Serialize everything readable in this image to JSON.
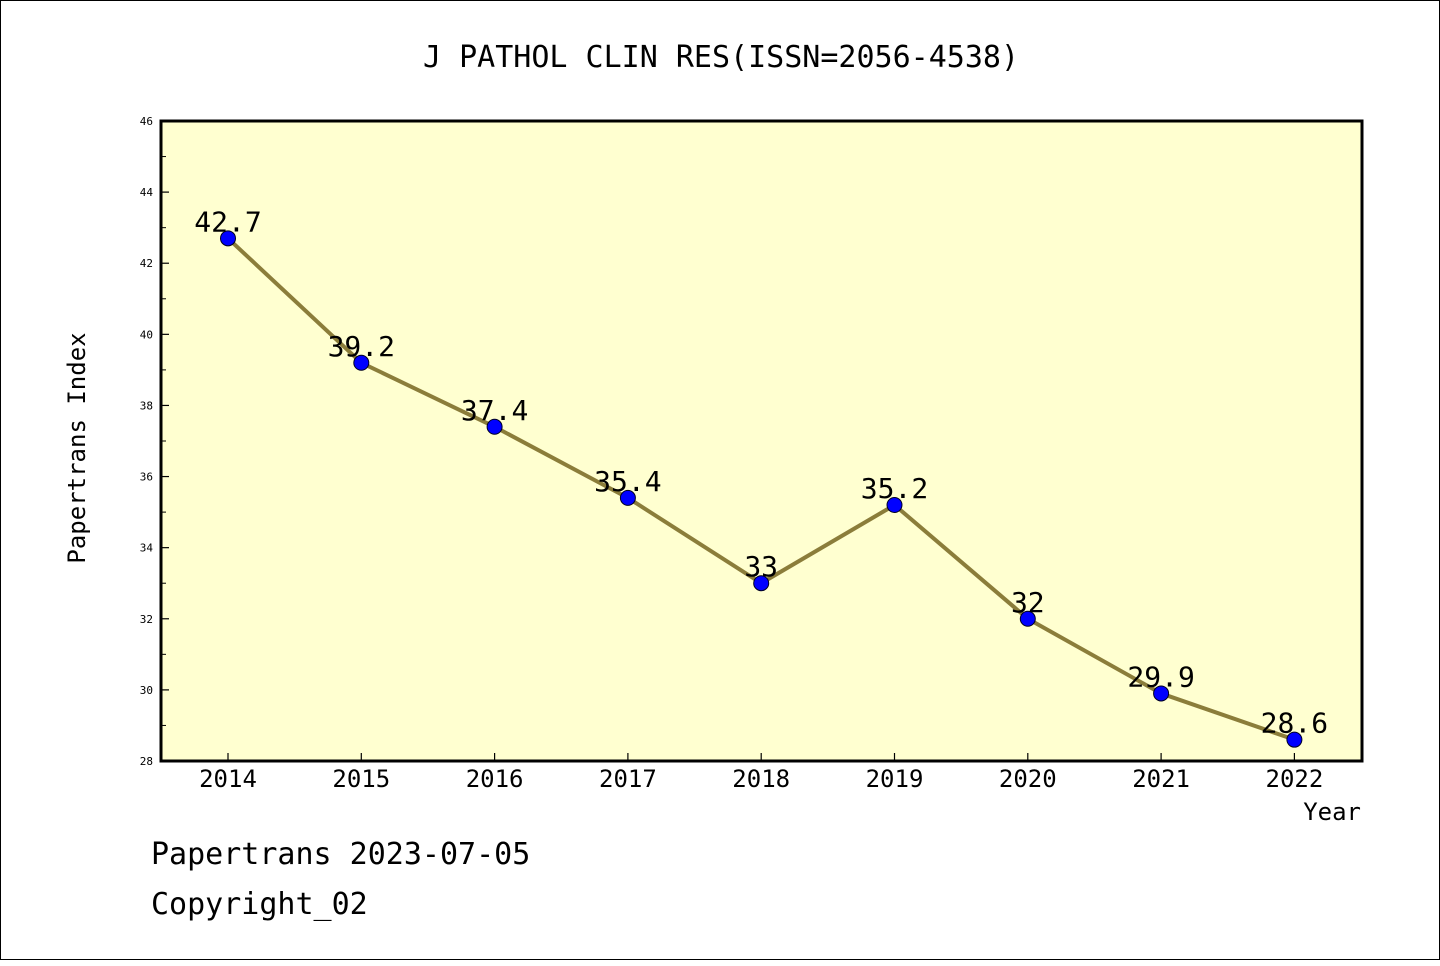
{
  "chart_data": {
    "type": "line",
    "title": "J PATHOL CLIN RES(ISSN=2056-4538)",
    "xlabel": "Year",
    "ylabel": "Papertrans Index",
    "x": [
      "2014",
      "2015",
      "2016",
      "2017",
      "2018",
      "2019",
      "2020",
      "2021",
      "2022"
    ],
    "series": [
      {
        "values": [
          42.7,
          39.2,
          37.4,
          35.4,
          33,
          35.2,
          32,
          29.9,
          28.6
        ],
        "labels": [
          "42.7",
          "39.2",
          "37.4",
          "35.4",
          "33",
          "35.2",
          "32",
          "29.9",
          "28.6"
        ]
      }
    ],
    "ylim": [
      28,
      46
    ],
    "yticks": [
      "28",
      "30",
      "32",
      "34",
      "36",
      "38",
      "40",
      "42",
      "44",
      "46"
    ],
    "grid": false,
    "legend": "none",
    "colors": {
      "plot_background": "#FFFFD0",
      "line": "#8B7D3A",
      "marker": "#0000FF"
    }
  },
  "footer": {
    "line1": "Papertrans 2023-07-05",
    "line2": "Copyright_02"
  }
}
